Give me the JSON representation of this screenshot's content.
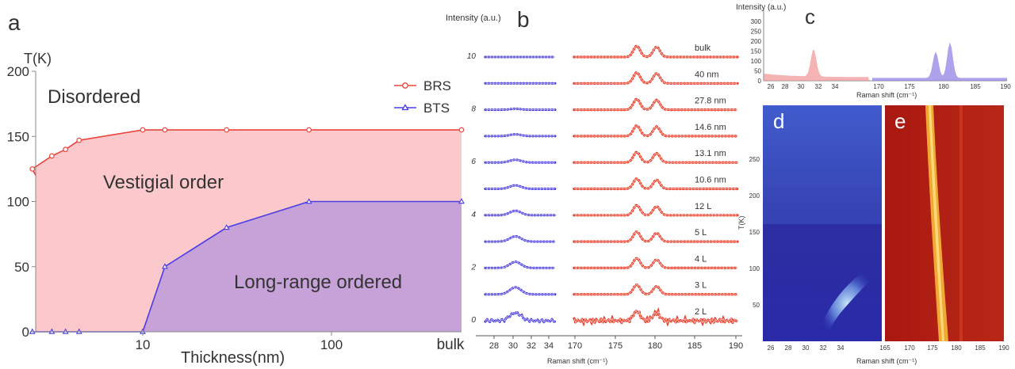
{
  "panels": [
    {
      "letter": "a",
      "type": "area",
      "xlabel": "Thickness(nm)",
      "ylabel": "T(K)",
      "x_scale": "log",
      "x_ticks": [
        "10",
        "100",
        "bulk"
      ],
      "y_ticks": [
        "0",
        "50",
        "100",
        "150",
        "200"
      ],
      "ylim": [
        0,
        200
      ],
      "legend_position": "top-right",
      "region_labels": [
        "Disordered",
        "Vestigial order",
        "Long-range ordered"
      ],
      "series": [
        {
          "name": "BRS",
          "color": "#e8463c",
          "marker": "circle",
          "x": [
            2.6,
            3.3,
            3.9,
            4.6,
            10,
            13.1,
            27.8,
            76,
            "bulk"
          ],
          "y": [
            125,
            135,
            140,
            147,
            155,
            155,
            155,
            155,
            155
          ]
        },
        {
          "name": "BTS",
          "color": "#4a3de8",
          "marker": "triangle",
          "x": [
            2.6,
            3.3,
            3.9,
            4.6,
            10,
            13.1,
            27.8,
            76,
            "bulk"
          ],
          "y": [
            0,
            0,
            0,
            0,
            0,
            50,
            80,
            100,
            100
          ]
        }
      ]
    },
    {
      "letter": "b",
      "type": "line",
      "ylabel": "Intensity (a.u.)",
      "xlabel": "Raman shift (cm⁻¹)",
      "y_ticks": [
        "0",
        "2",
        "4",
        "6",
        "8",
        "10"
      ],
      "x_ticks_left": [
        "28",
        "30",
        "32",
        "34"
      ],
      "x_ticks_right": [
        "170",
        "175",
        "180",
        "185",
        "190"
      ],
      "trace_labels": [
        "bulk",
        "40 nm",
        "27.8 nm",
        "14.6 nm",
        "13.1 nm",
        "10.6 nm",
        "12 L",
        "5 L",
        "4 L",
        "3 L",
        "2 L"
      ],
      "colors": {
        "left": "#3a2fe0",
        "right": "#e8321e"
      }
    },
    {
      "letter": "c",
      "type": "area",
      "ylabel": "Intensity (a.u.)",
      "xlabel": "Raman shift (cm⁻¹)",
      "y_ticks": [
        "0",
        "50",
        "100",
        "150",
        "200",
        "250",
        "300"
      ],
      "x_ticks_left": [
        "26",
        "28",
        "30",
        "32",
        "34"
      ],
      "x_ticks_right": [
        "170",
        "175",
        "180",
        "185",
        "190"
      ],
      "colors": {
        "left": "#f08a8a",
        "right": "#8c7ae6"
      }
    },
    {
      "letter": "d",
      "type": "heatmap",
      "ylabel": "T(K)",
      "y_ticks": [
        "50",
        "100",
        "150",
        "200",
        "250"
      ],
      "x_ticks": [
        "26",
        "28",
        "30",
        "32",
        "34"
      ]
    },
    {
      "letter": "e",
      "type": "heatmap",
      "xlabel": "Raman shift (cm⁻¹)",
      "x_ticks": [
        "165",
        "170",
        "175",
        "180",
        "185",
        "190"
      ]
    }
  ],
  "chart_data": [
    {
      "type": "area",
      "xlabel": "Thickness(nm)",
      "ylabel": "T(K)",
      "ylim": [
        0,
        200
      ],
      "categories_note": "",
      "series": [
        {
          "name": "BRS",
          "x": [
            2.6,
            3.3,
            3.9,
            4.6,
            10,
            13.1,
            27.8,
            76,
            "bulk"
          ],
          "values": [
            125,
            135,
            140,
            147,
            155,
            155,
            155,
            155,
            155
          ]
        },
        {
          "name": "BTS",
          "x": [
            2.6,
            3.3,
            3.9,
            4.6,
            10,
            13.1,
            27.8,
            76,
            "bulk"
          ],
          "values": [
            0,
            0,
            0,
            0,
            0,
            50,
            80,
            100,
            100
          ]
        }
      ]
    }
  ]
}
